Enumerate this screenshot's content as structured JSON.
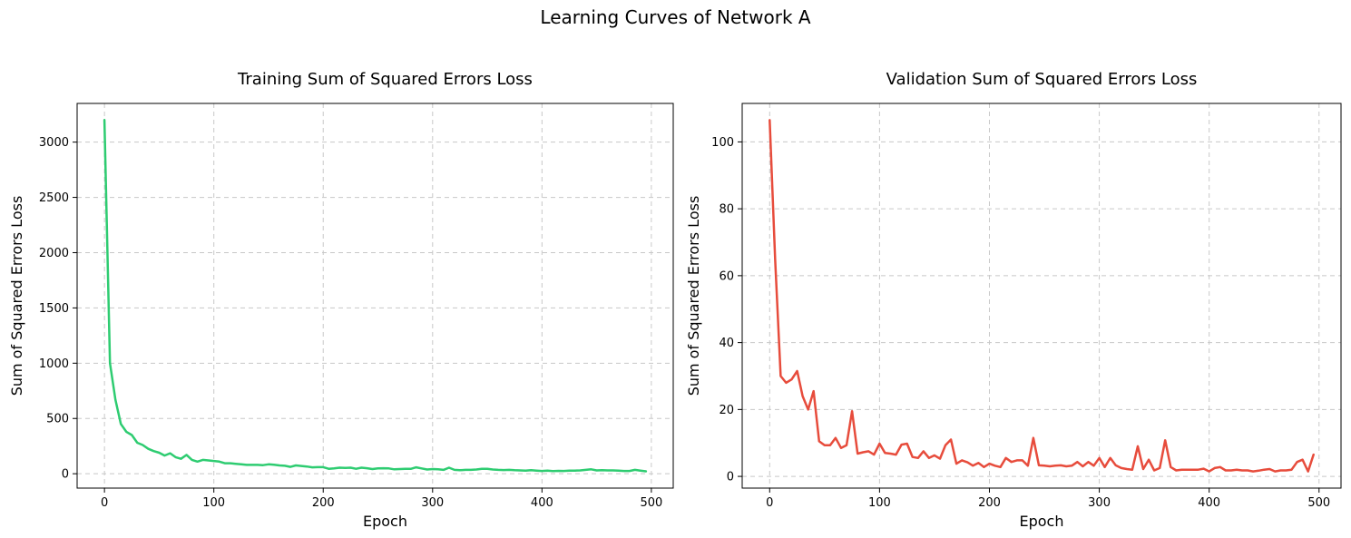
{
  "figure": {
    "suptitle": "Learning Curves of Network A"
  },
  "chart_data": [
    {
      "type": "line",
      "title": "Training Sum of Squared Errors Loss",
      "xlabel": "Epoch",
      "ylabel": "Sum of Squared Errors Loss",
      "xlim": [
        -25,
        520
      ],
      "ylim": [
        -130,
        3350
      ],
      "xticks": [
        0,
        100,
        200,
        300,
        400,
        500
      ],
      "yticks": [
        0,
        500,
        1000,
        1500,
        2000,
        2500,
        3000
      ],
      "grid": true,
      "color": "#2ecc71",
      "series": [
        {
          "x": [
            0,
            5,
            10,
            15,
            20,
            25,
            30,
            35,
            40,
            45,
            50,
            55,
            60,
            65,
            70,
            75,
            80,
            85,
            90,
            95,
            100,
            105,
            110,
            115,
            120,
            125,
            130,
            135,
            140,
            145,
            150,
            155,
            160,
            165,
            170,
            175,
            180,
            185,
            190,
            195,
            200,
            205,
            210,
            215,
            220,
            225,
            230,
            235,
            240,
            245,
            250,
            255,
            260,
            265,
            270,
            275,
            280,
            285,
            290,
            295,
            300,
            305,
            310,
            315,
            320,
            325,
            330,
            335,
            340,
            345,
            350,
            355,
            360,
            365,
            370,
            375,
            380,
            385,
            390,
            395,
            400,
            405,
            410,
            415,
            420,
            425,
            430,
            435,
            440,
            445,
            450,
            455,
            460,
            465,
            470,
            475,
            480,
            485,
            490,
            495
          ],
          "y": [
            3200,
            1000,
            670,
            450,
            380,
            350,
            280,
            260,
            225,
            205,
            190,
            165,
            185,
            150,
            135,
            170,
            125,
            110,
            125,
            120,
            115,
            110,
            95,
            95,
            90,
            85,
            80,
            80,
            80,
            78,
            85,
            82,
            75,
            72,
            62,
            75,
            70,
            65,
            58,
            60,
            60,
            45,
            48,
            55,
            52,
            55,
            45,
            55,
            50,
            42,
            48,
            50,
            48,
            40,
            42,
            45,
            44,
            58,
            48,
            38,
            42,
            40,
            35,
            55,
            35,
            32,
            35,
            35,
            38,
            45,
            45,
            38,
            35,
            33,
            35,
            32,
            30,
            28,
            32,
            28,
            25,
            28,
            24,
            26,
            25,
            28,
            28,
            30,
            35,
            40,
            30,
            32,
            30,
            30,
            28,
            25,
            25,
            35,
            28,
            22
          ]
        }
      ]
    },
    {
      "type": "line",
      "title": "Validation Sum of Squared Errors Loss",
      "xlabel": "Epoch",
      "ylabel": "Sum of Squared Errors Loss",
      "xlim": [
        -25,
        520
      ],
      "ylim": [
        -3.5,
        111.5
      ],
      "xticks": [
        0,
        100,
        200,
        300,
        400,
        500
      ],
      "yticks": [
        0,
        20,
        40,
        60,
        80,
        100
      ],
      "grid": true,
      "color": "#e74c3c",
      "series": [
        {
          "x": [
            0,
            5,
            10,
            15,
            20,
            25,
            30,
            35,
            40,
            45,
            50,
            55,
            60,
            65,
            70,
            75,
            80,
            85,
            90,
            95,
            100,
            105,
            110,
            115,
            120,
            125,
            130,
            135,
            140,
            145,
            150,
            155,
            160,
            165,
            170,
            175,
            180,
            185,
            190,
            195,
            200,
            205,
            210,
            215,
            220,
            225,
            230,
            235,
            240,
            245,
            250,
            255,
            260,
            265,
            270,
            275,
            280,
            285,
            290,
            295,
            300,
            305,
            310,
            315,
            320,
            325,
            330,
            335,
            340,
            345,
            350,
            355,
            360,
            365,
            370,
            375,
            380,
            385,
            390,
            395,
            400,
            405,
            410,
            415,
            420,
            425,
            430,
            435,
            440,
            445,
            450,
            455,
            460,
            465,
            470,
            475,
            480,
            485,
            490,
            495
          ],
          "y": [
            106.5,
            65,
            30,
            28,
            29,
            31.5,
            24,
            20,
            25.5,
            10.5,
            9.3,
            9.3,
            11.5,
            8.5,
            9.3,
            19.5,
            6.8,
            7.2,
            7.5,
            6.5,
            9.8,
            7,
            6.8,
            6.5,
            9.5,
            9.8,
            5.8,
            5.5,
            7.5,
            5.5,
            6.3,
            5.3,
            9.3,
            11,
            3.8,
            4.8,
            4.2,
            3.2,
            4,
            2.8,
            3.8,
            3.2,
            2.8,
            5.5,
            4.3,
            4.8,
            4.8,
            3.2,
            11.5,
            3.3,
            3.2,
            3,
            3.2,
            3.3,
            3,
            3.2,
            4.3,
            3,
            4.3,
            3.2,
            5.5,
            2.8,
            5.5,
            3.3,
            2.5,
            2.2,
            2,
            9,
            2.2,
            5,
            1.8,
            2.5,
            10.8,
            2.8,
            1.8,
            2,
            2,
            2,
            2,
            2.3,
            1.5,
            2.5,
            2.8,
            1.8,
            1.8,
            2,
            1.8,
            1.8,
            1.5,
            1.7,
            2,
            2.2,
            1.5,
            1.8,
            1.8,
            2,
            4.3,
            5,
            1.5,
            6.5
          ]
        }
      ]
    }
  ]
}
